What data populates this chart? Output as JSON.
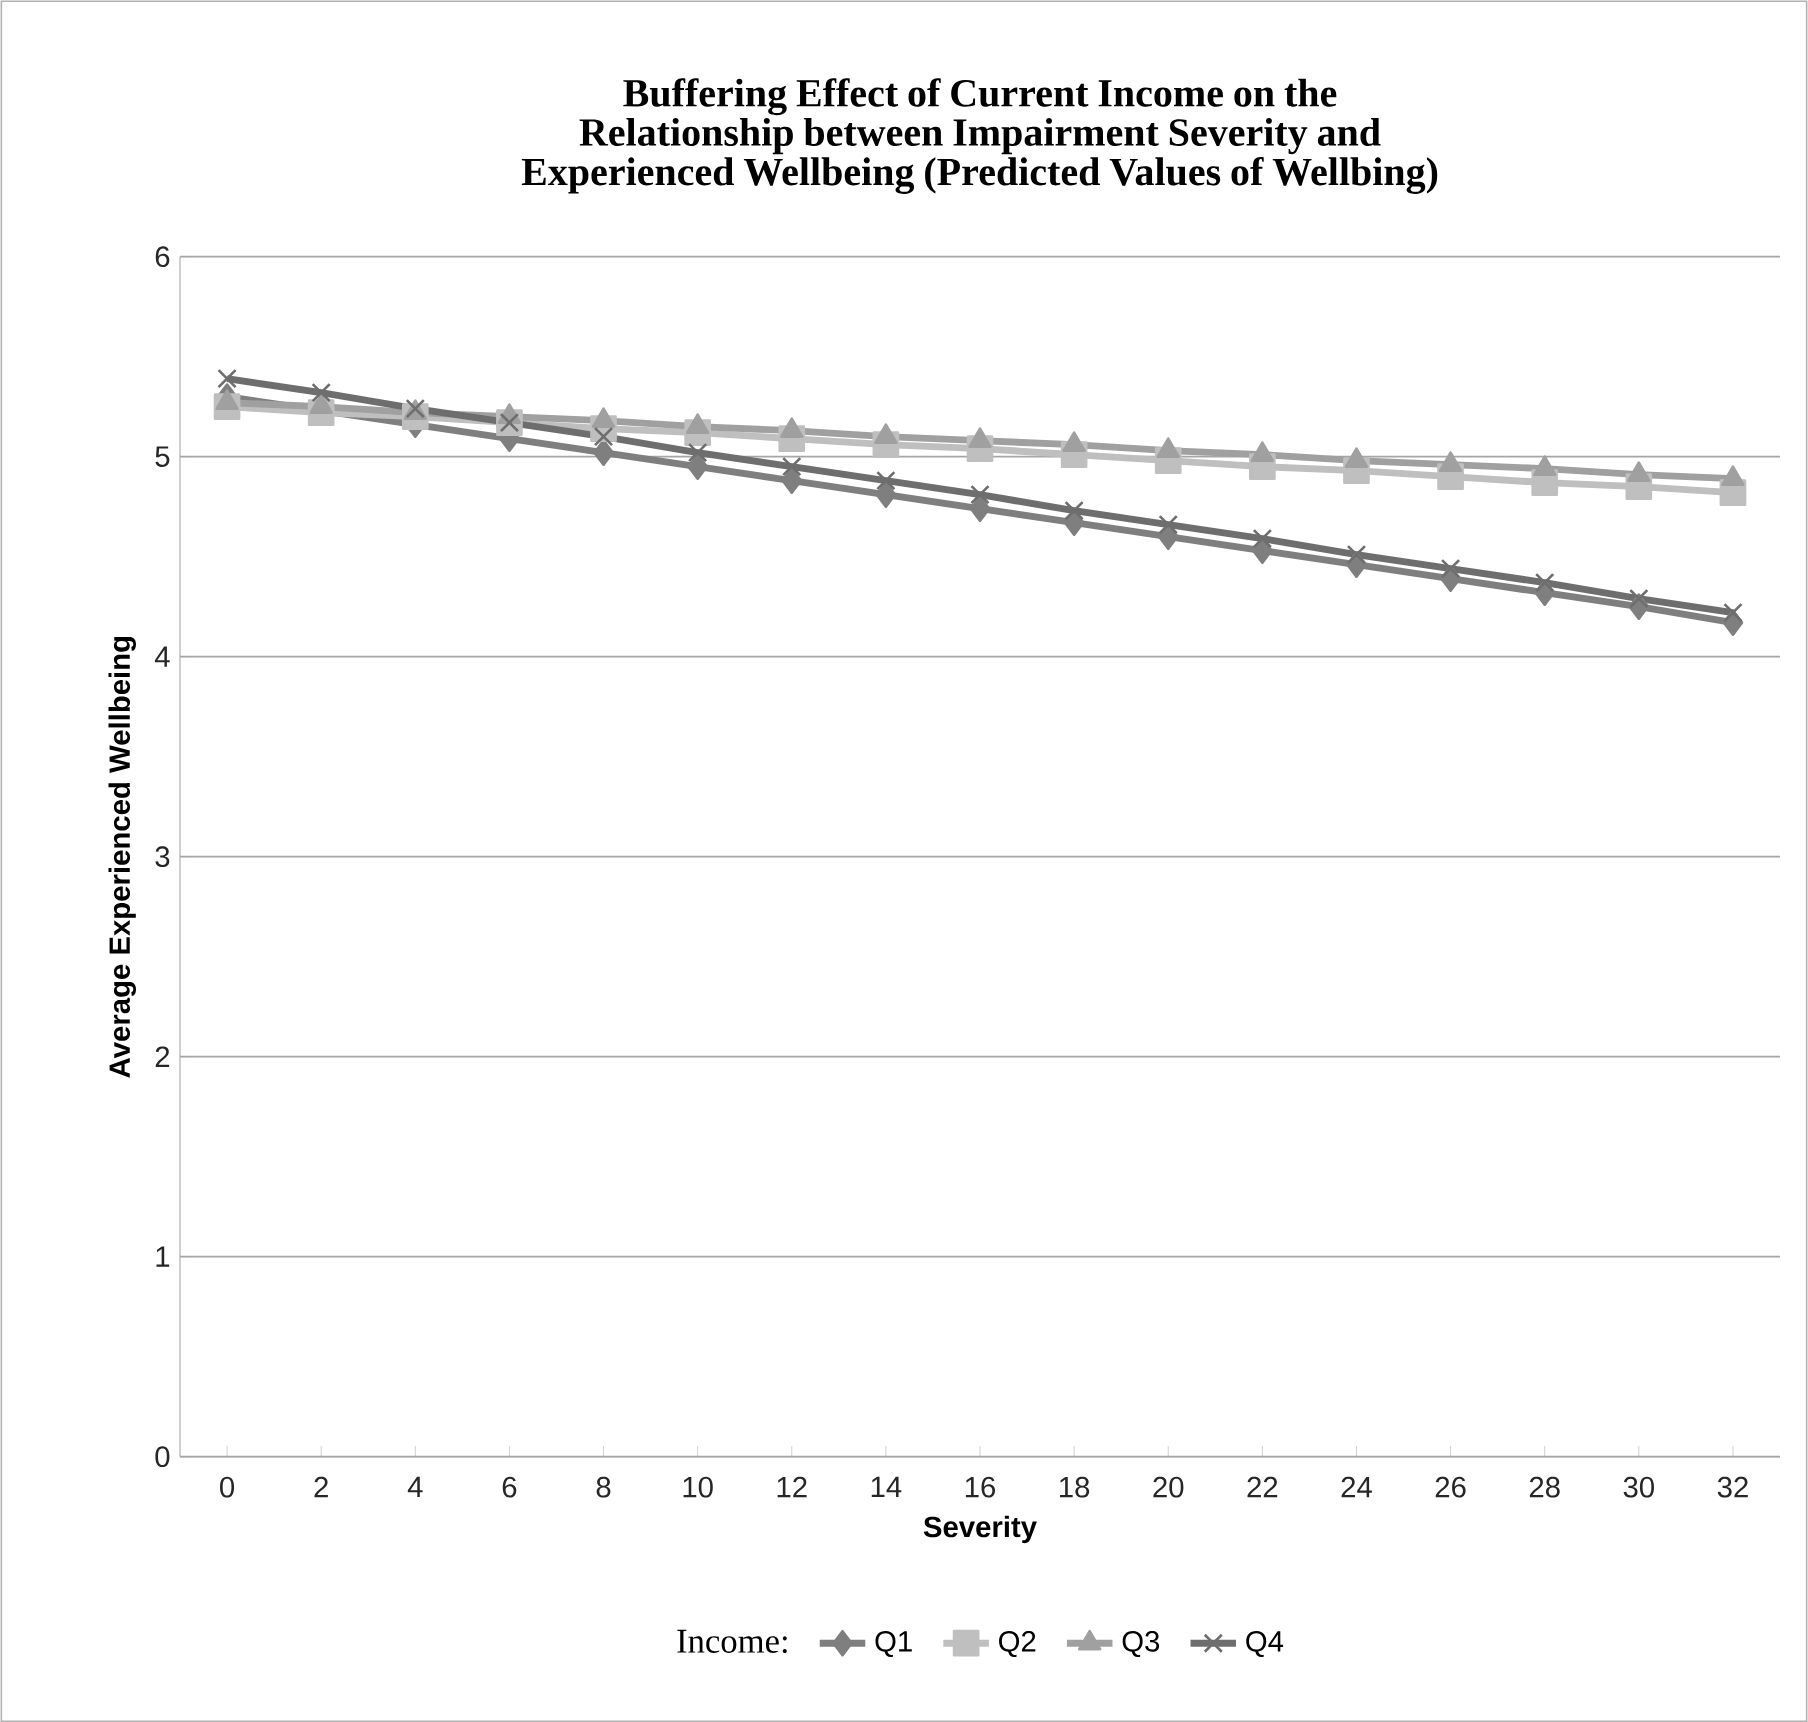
{
  "chart_data": {
    "type": "line",
    "title": "Buffering Effect of Current Income on the Relationship between Impairment Severity and Experienced Wellbeing (Predicted Values of Wellbing)",
    "xlabel": "Severity",
    "ylabel": "Average Experienced Wellbeing",
    "legend_title": "Income:",
    "categories": [
      "0",
      "2",
      "4",
      "6",
      "8",
      "10",
      "12",
      "14",
      "16",
      "18",
      "20",
      "22",
      "24",
      "26",
      "28",
      "30",
      "32"
    ],
    "series": [
      {
        "name": "Q1",
        "color": "#7f7f7f",
        "marker": "diamond",
        "values": [
          5.3,
          5.23,
          5.16,
          5.09,
          5.02,
          4.95,
          4.88,
          4.81,
          4.74,
          4.67,
          4.6,
          4.53,
          4.46,
          4.39,
          4.32,
          4.25,
          4.17
        ]
      },
      {
        "name": "Q2",
        "color": "#bfbfbf",
        "marker": "square",
        "values": [
          5.25,
          5.22,
          5.2,
          5.17,
          5.14,
          5.12,
          5.09,
          5.06,
          5.04,
          5.01,
          4.98,
          4.95,
          4.93,
          4.9,
          4.87,
          4.85,
          4.82
        ]
      },
      {
        "name": "Q3",
        "color": "#a0a0a0",
        "marker": "triangle",
        "values": [
          5.27,
          5.25,
          5.22,
          5.2,
          5.18,
          5.15,
          5.13,
          5.1,
          5.08,
          5.06,
          5.03,
          5.01,
          4.98,
          4.96,
          4.94,
          4.91,
          4.89
        ]
      },
      {
        "name": "Q4",
        "color": "#6e6e6e",
        "marker": "cross",
        "values": [
          5.39,
          5.32,
          5.24,
          5.17,
          5.1,
          5.02,
          4.95,
          4.88,
          4.81,
          4.73,
          4.66,
          4.59,
          4.51,
          4.44,
          4.37,
          4.29,
          4.22
        ]
      }
    ],
    "ylim": [
      0,
      6
    ],
    "yticks": [
      0,
      1,
      2,
      3,
      4,
      5,
      6
    ],
    "grid": "y",
    "legend": "bottom",
    "line_style": "solid"
  }
}
